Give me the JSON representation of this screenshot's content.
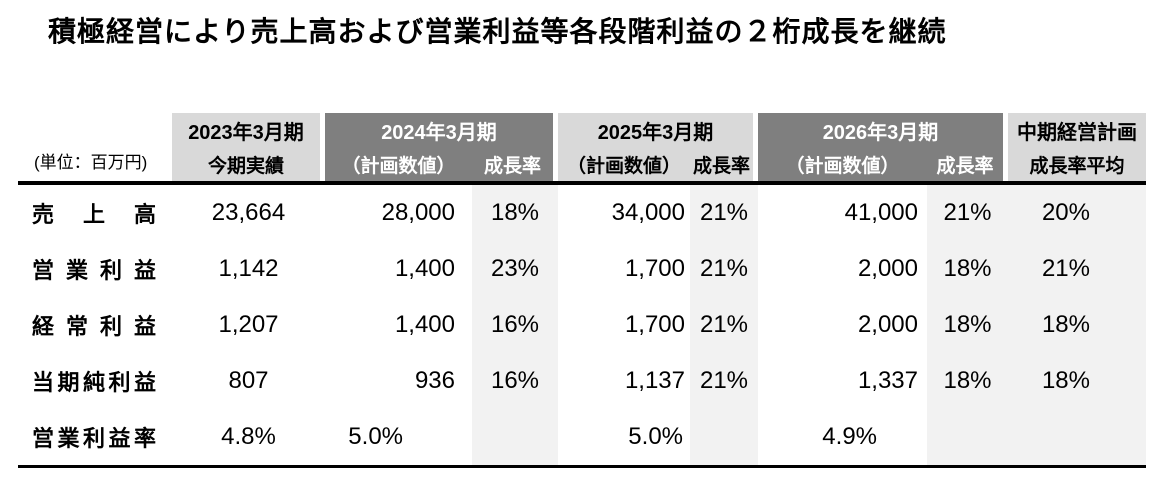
{
  "title": "積極経営により売上高および営業利益等各段階利益の２桁成長を継続",
  "colors": {
    "header_dark": "#7f7f7f",
    "header_light": "#d9d9d9",
    "growth_band": "#f2f2f2",
    "rule": "#000000"
  },
  "table": {
    "unit_label": "(単位：百万円)",
    "columns": [
      {
        "year": "2023年3月期",
        "sub": [
          "今期実績"
        ],
        "theme": "light"
      },
      {
        "year": "2024年3月期",
        "sub": [
          "（計画数値）",
          "成長率"
        ],
        "theme": "dark"
      },
      {
        "year": "2025年3月期",
        "sub": [
          "（計画数値）",
          "成長率"
        ],
        "theme": "light"
      },
      {
        "year": "2026年3月期",
        "sub": [
          "（計画数値）",
          "成長率"
        ],
        "theme": "dark"
      },
      {
        "year": "中期経営計画",
        "sub": [
          "成長率平均"
        ],
        "theme": "light"
      }
    ],
    "rows": [
      {
        "label": "売上高",
        "cells": [
          "23,664",
          "28,000",
          "18%",
          "34,000",
          "21%",
          "41,000",
          "21%",
          "20%"
        ]
      },
      {
        "label": "営業利益",
        "cells": [
          "1,142",
          "1,400",
          "23%",
          "1,700",
          "21%",
          "2,000",
          "18%",
          "21%"
        ]
      },
      {
        "label": "経常利益",
        "cells": [
          "1,207",
          "1,400",
          "16%",
          "1,700",
          "21%",
          "2,000",
          "18%",
          "18%"
        ]
      },
      {
        "label": "当期純利益",
        "cells": [
          "807",
          "936",
          "16%",
          "1,137",
          "21%",
          "1,337",
          "18%",
          "18%"
        ]
      },
      {
        "label": "営業利益率",
        "cells": [
          "4.8%",
          "5.0%",
          "",
          "5.0%",
          "",
          "4.9%",
          "",
          ""
        ]
      }
    ]
  }
}
